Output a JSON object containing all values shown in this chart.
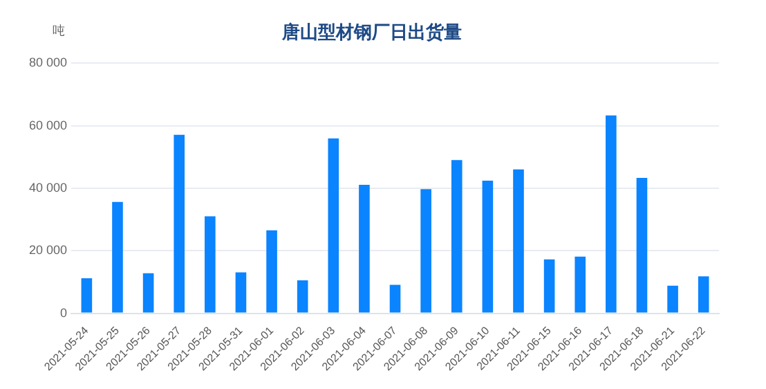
{
  "chart_data": {
    "type": "bar",
    "title": "唐山型材钢厂日出货量",
    "ylabel": "吨",
    "categories": [
      "2021-05-24",
      "2021-05-25",
      "2021-05-26",
      "2021-05-27",
      "2021-05-28",
      "2021-05-31",
      "2021-06-01",
      "2021-06-02",
      "2021-06-03",
      "2021-06-04",
      "2021-06-07",
      "2021-06-08",
      "2021-06-09",
      "2021-06-10",
      "2021-06-11",
      "2021-06-15",
      "2021-06-16",
      "2021-06-17",
      "2021-06-18",
      "2021-06-21",
      "2021-06-22"
    ],
    "values": [
      11200,
      35600,
      12800,
      57100,
      31000,
      13100,
      26500,
      10500,
      55900,
      41100,
      9100,
      39700,
      49000,
      42400,
      46000,
      17200,
      18100,
      63300,
      43300,
      8800,
      11800
    ],
    "color": "#0a84ff",
    "ylim": [
      0,
      80000
    ],
    "yticks": [
      {
        "value": 0,
        "label": "0"
      },
      {
        "value": 20000,
        "label": "20 000"
      },
      {
        "value": 40000,
        "label": "40 000"
      },
      {
        "value": 60000,
        "label": "60 000"
      },
      {
        "value": 80000,
        "label": "80 000"
      }
    ],
    "grid": "y",
    "legend": false
  }
}
